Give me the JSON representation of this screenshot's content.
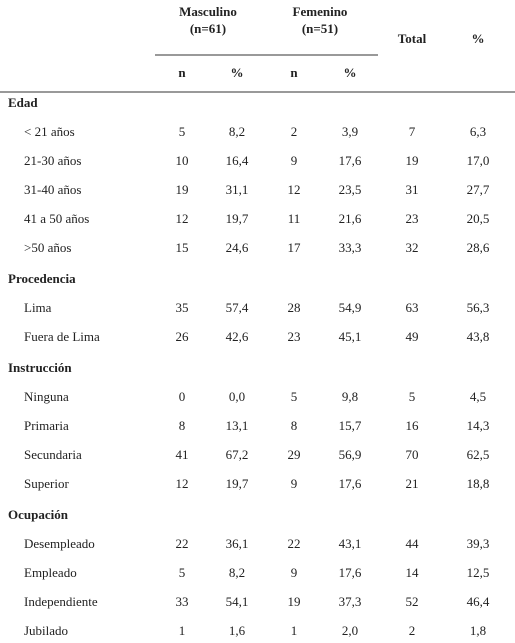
{
  "header": {
    "masculino": "Masculino",
    "masculino_n": "(n=61)",
    "femenino": "Femenino",
    "femenino_n": "(n=51)",
    "total": "Total",
    "pct": "%",
    "sub": [
      "n",
      "%",
      "n",
      "%"
    ]
  },
  "sections": [
    {
      "title": "Edad",
      "rows": [
        [
          "< 21 años",
          "5",
          "8,2",
          "2",
          "3,9",
          "7",
          "6,3"
        ],
        [
          "21-30 años",
          "10",
          "16,4",
          "9",
          "17,6",
          "19",
          "17,0"
        ],
        [
          "31-40 años",
          "19",
          "31,1",
          "12",
          "23,5",
          "31",
          "27,7"
        ],
        [
          "41 a 50 años",
          "12",
          "19,7",
          "11",
          "21,6",
          "23",
          "20,5"
        ],
        [
          ">50 años",
          "15",
          "24,6",
          "17",
          "33,3",
          "32",
          "28,6"
        ]
      ]
    },
    {
      "title": "Procedencia",
      "rows": [
        [
          "Lima",
          "35",
          "57,4",
          "28",
          "54,9",
          "63",
          "56,3"
        ],
        [
          "Fuera de Lima",
          "26",
          "42,6",
          "23",
          "45,1",
          "49",
          "43,8"
        ]
      ]
    },
    {
      "title": "Instrucción",
      "rows": [
        [
          "Ninguna",
          "0",
          "0,0",
          "5",
          "9,8",
          "5",
          "4,5"
        ],
        [
          "Primaria",
          "8",
          "13,1",
          "8",
          "15,7",
          "16",
          "14,3"
        ],
        [
          "Secundaria",
          "41",
          "67,2",
          "29",
          "56,9",
          "70",
          "62,5"
        ],
        [
          "Superior",
          "12",
          "19,7",
          "9",
          "17,6",
          "21",
          "18,8"
        ]
      ]
    },
    {
      "title": "Ocupación",
      "rows": [
        [
          "Desempleado",
          "22",
          "36,1",
          "22",
          "43,1",
          "44",
          "39,3"
        ],
        [
          "Empleado",
          "5",
          "8,2",
          "9",
          "17,6",
          "14",
          "12,5"
        ],
        [
          "Independiente",
          "33",
          "54,1",
          "19",
          "37,3",
          "52",
          "46,4"
        ],
        [
          "Jubilado",
          "1",
          "1,6",
          "1",
          "2,0",
          "2",
          "1,8"
        ]
      ]
    }
  ]
}
